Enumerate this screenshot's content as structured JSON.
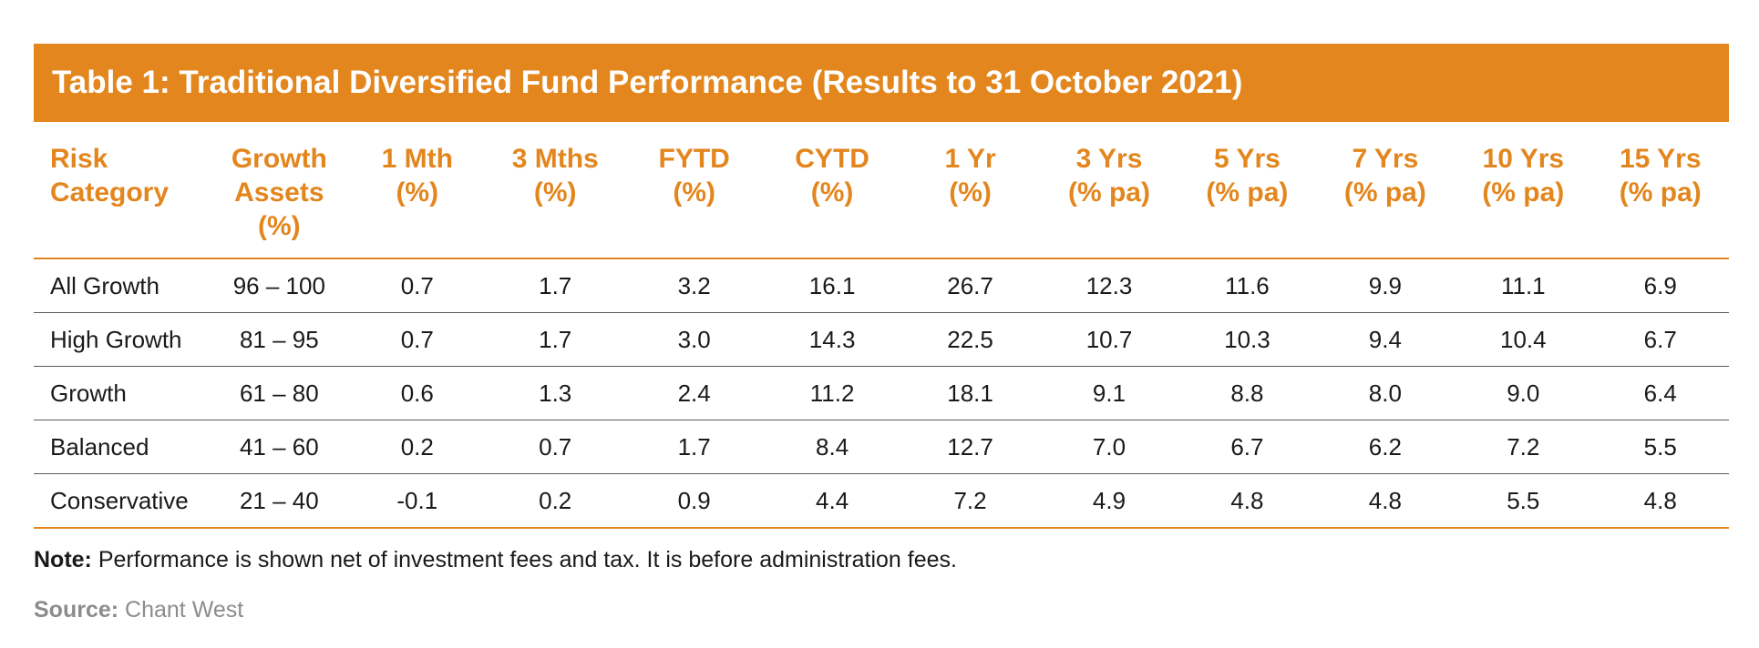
{
  "title": "Table 1: Traditional Diversified Fund Performance (Results to 31 October 2021)",
  "headers": [
    [
      "Risk",
      "Category"
    ],
    [
      "Growth",
      "Assets",
      "(%)"
    ],
    [
      "1 Mth",
      "(%)"
    ],
    [
      "3 Mths",
      "(%)"
    ],
    [
      "FYTD",
      "(%)"
    ],
    [
      "CYTD",
      "(%)"
    ],
    [
      "1 Yr",
      "(%)"
    ],
    [
      "3 Yrs",
      "(% pa)"
    ],
    [
      "5 Yrs",
      "(% pa)"
    ],
    [
      "7 Yrs",
      "(% pa)"
    ],
    [
      "10 Yrs",
      "(% pa)"
    ],
    [
      "15 Yrs",
      "(% pa)"
    ]
  ],
  "rows": [
    [
      "All Growth",
      "96 – 100",
      "0.7",
      "1.7",
      "3.2",
      "16.1",
      "26.7",
      "12.3",
      "11.6",
      "9.9",
      "11.1",
      "6.9"
    ],
    [
      "High Growth",
      "81 – 95",
      "0.7",
      "1.7",
      "3.0",
      "14.3",
      "22.5",
      "10.7",
      "10.3",
      "9.4",
      "10.4",
      "6.7"
    ],
    [
      "Growth",
      "61 – 80",
      "0.6",
      "1.3",
      "2.4",
      "11.2",
      "18.1",
      "9.1",
      "8.8",
      "8.0",
      "9.0",
      "6.4"
    ],
    [
      "Balanced",
      "41 – 60",
      "0.2",
      "0.7",
      "1.7",
      "8.4",
      "12.7",
      "7.0",
      "6.7",
      "6.2",
      "7.2",
      "5.5"
    ],
    [
      "Conservative",
      "21 – 40",
      "-0.1",
      "0.2",
      "0.9",
      "4.4",
      "7.2",
      "4.9",
      "4.8",
      "4.8",
      "5.5",
      "4.8"
    ]
  ],
  "note": {
    "label": "Note:",
    "text": " Performance is shown net of investment fees and tax. It is before administration fees."
  },
  "source": {
    "label": "Source:",
    "text": " Chant West"
  },
  "colors": {
    "accent": "#E3861D",
    "source_text": "#8c8c8c"
  }
}
